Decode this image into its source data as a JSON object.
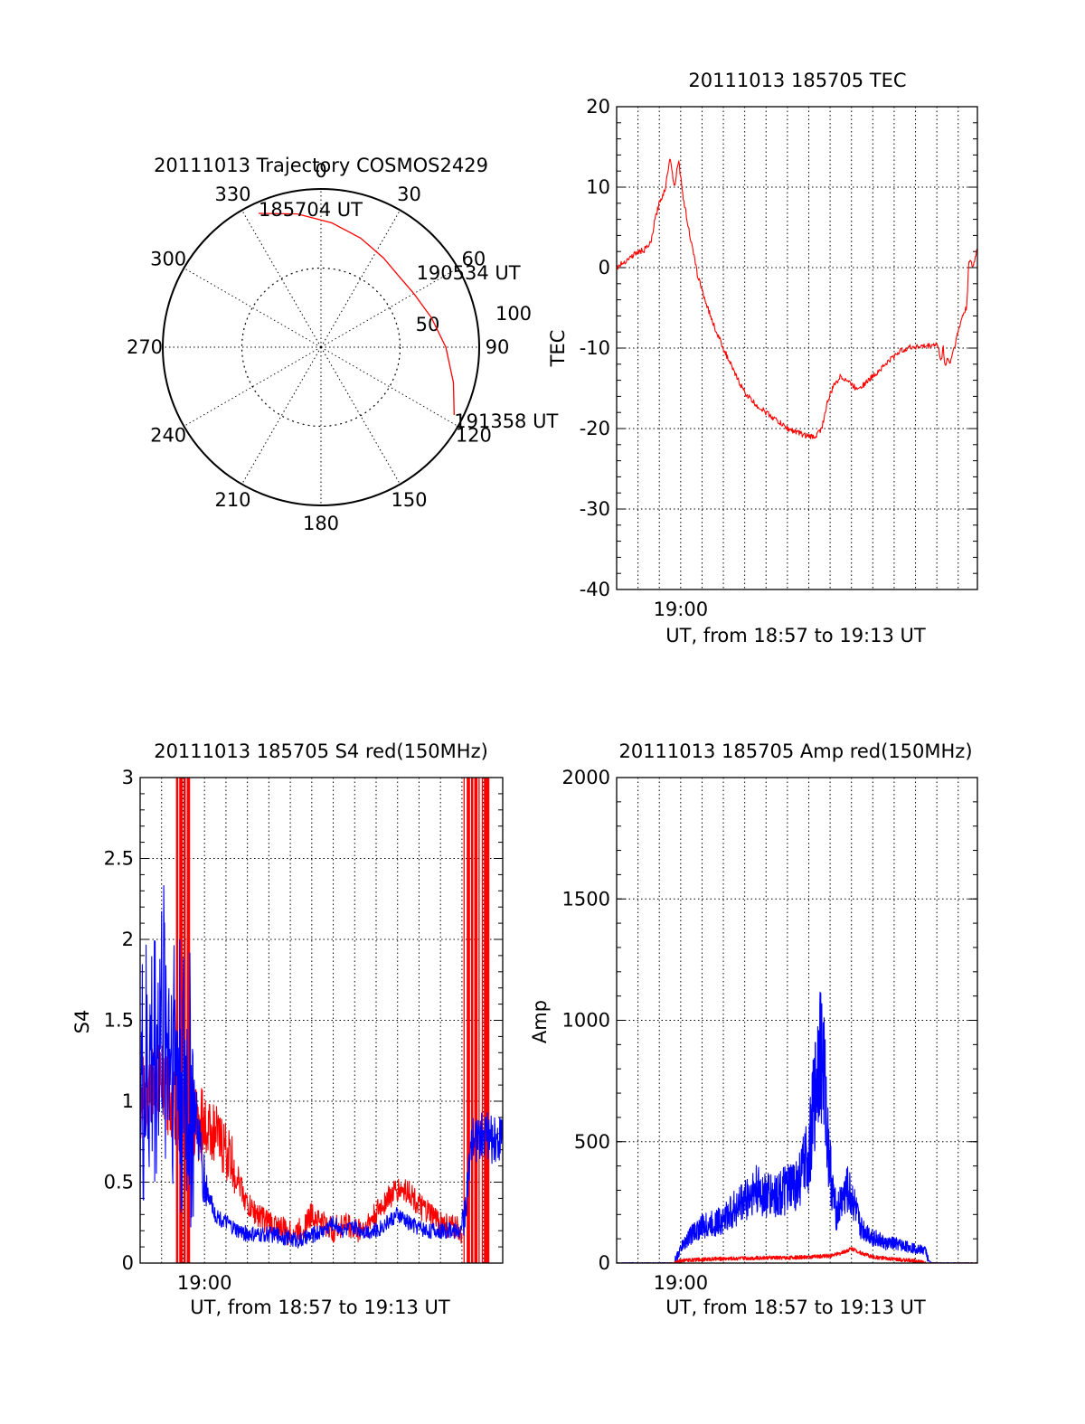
{
  "chart_data": [
    {
      "type": "polar",
      "title": "20111013 Trajectory COSMOS2429",
      "angle_labels": [
        "0",
        "30",
        "60",
        "90",
        "120",
        "150",
        "180",
        "210",
        "240",
        "270",
        "300",
        "330"
      ],
      "radial_labels": [
        "50",
        "100"
      ],
      "series": [
        {
          "color": "#ff0000",
          "points": [
            {
              "az": 335,
              "el": 6
            },
            {
              "az": 350,
              "el": 13
            },
            {
              "az": 5,
              "el": 19
            },
            {
              "az": 20,
              "el": 24
            },
            {
              "az": 35,
              "el": 28
            },
            {
              "az": 47,
              "el": 30
            },
            {
              "az": 60,
              "el": 29
            },
            {
              "az": 75,
              "el": 25
            },
            {
              "az": 90,
              "el": 19
            },
            {
              "az": 105,
              "el": 12
            },
            {
              "az": 117,
              "el": 5
            }
          ]
        }
      ],
      "annotations": [
        {
          "text": "185704 UT",
          "az": 335,
          "el": 6
        },
        {
          "text": "190534 UT",
          "az": 55,
          "el": 30
        },
        {
          "text": "191358 UT",
          "az": 117,
          "el": 5
        }
      ]
    },
    {
      "type": "line",
      "title": "20111013 185705 TEC",
      "ylabel": "TEC",
      "xlabel": "UT, from 18:57 to 19:13 UT",
      "x_tick_label": "19:00",
      "x_tick_value": 3,
      "xlim": [
        0,
        16.9
      ],
      "ylim": [
        -40,
        20
      ],
      "yticks": [
        "20",
        "10",
        "0",
        "-10",
        "-20",
        "-30",
        "-40"
      ],
      "series": [
        {
          "color": "#ff0000",
          "x": [
            0,
            0.5,
            0.9,
            1.3,
            1.6,
            1.8,
            2.0,
            2.3,
            2.5,
            2.7,
            2.9,
            3.1,
            3.3,
            3.5,
            3.8,
            4.2,
            4.6,
            5.0,
            5.5,
            6.0,
            6.5,
            7.0,
            7.5,
            8.0,
            8.5,
            9.0,
            9.3,
            9.6,
            9.9,
            10.2,
            10.5,
            10.8,
            11.2,
            11.6,
            12.0,
            12.4,
            12.8,
            13.2,
            13.6,
            14.0,
            14.5,
            15.0,
            15.2,
            15.3,
            15.4,
            15.5,
            15.6,
            15.8,
            16.0,
            16.2,
            16.4,
            16.5,
            16.7,
            16.9
          ],
          "y": [
            0,
            1.0,
            1.8,
            2.2,
            3.0,
            6.0,
            8.0,
            10.0,
            14.0,
            10.0,
            13.5,
            9.0,
            6.0,
            3.0,
            -1.0,
            -4.5,
            -7.5,
            -10.0,
            -13.0,
            -15.5,
            -17.0,
            -18.0,
            -19.0,
            -20.0,
            -20.5,
            -21.0,
            -21.0,
            -20.0,
            -16.5,
            -14.5,
            -13.5,
            -14.0,
            -15.0,
            -14.5,
            -13.5,
            -12.5,
            -11.5,
            -10.5,
            -10.0,
            -9.8,
            -9.8,
            -9.5,
            -11.5,
            -10.0,
            -12.5,
            -11.0,
            -12.0,
            -10.0,
            -8.0,
            -6.0,
            -5.0,
            1.0,
            0,
            2.5
          ]
        }
      ]
    },
    {
      "type": "line",
      "title": "20111013 185705 S4 red(150MHz)",
      "ylabel": "S4",
      "xlabel": "UT, from 18:57 to 19:13 UT",
      "x_tick_label": "19:00",
      "x_tick_value": 3,
      "xlim": [
        0,
        16.9
      ],
      "ylim": [
        0,
        3
      ],
      "yticks": [
        "3",
        "2.5",
        "2",
        "1.5",
        "1",
        "0.5",
        "0"
      ],
      "series": [
        {
          "name": "red",
          "color": "#ff0000",
          "x": [
            0,
            0.5,
            1.0,
            1.5,
            2.0,
            2.5,
            3.0,
            3.5,
            4.0,
            4.5,
            5.0,
            5.5,
            6.0,
            6.5,
            7.0,
            7.5,
            8.0,
            8.5,
            9.0,
            9.5,
            10.0,
            10.5,
            11.0,
            11.5,
            12.0,
            12.5,
            13.0,
            13.5,
            14.0,
            14.5,
            15.0
          ],
          "y": [
            1.0,
            1.1,
            1.1,
            1.0,
            0.9,
            0.9,
            0.85,
            0.8,
            0.7,
            0.55,
            0.35,
            0.3,
            0.25,
            0.22,
            0.18,
            0.2,
            0.3,
            0.25,
            0.2,
            0.25,
            0.2,
            0.22,
            0.3,
            0.4,
            0.45,
            0.45,
            0.35,
            0.3,
            0.25,
            0.22,
            0.2
          ]
        },
        {
          "name": "blue",
          "color": "#0000ff",
          "x": [
            0,
            0.5,
            1.0,
            1.5,
            2.0,
            2.5,
            3.0,
            3.5,
            4.0,
            4.5,
            5.0,
            5.5,
            6.0,
            6.5,
            7.0,
            7.5,
            8.0,
            8.5,
            9.0,
            9.5,
            10.0,
            10.5,
            11.0,
            11.5,
            12.0,
            12.5,
            13.0,
            13.5,
            14.0,
            14.5,
            15.0,
            15.5,
            16.0,
            16.5,
            16.9
          ],
          "y": [
            1.0,
            1.2,
            1.5,
            1.4,
            1.1,
            1.0,
            0.5,
            0.3,
            0.25,
            0.2,
            0.18,
            0.17,
            0.18,
            0.17,
            0.15,
            0.14,
            0.17,
            0.2,
            0.25,
            0.2,
            0.22,
            0.2,
            0.2,
            0.25,
            0.3,
            0.25,
            0.22,
            0.2,
            0.2,
            0.2,
            0.2,
            0.75,
            0.8,
            0.75,
            0.8
          ]
        }
      ],
      "bursts": [
        {
          "x": [
            1.6,
            2.3
          ],
          "color": "#ff0000"
        },
        {
          "x": [
            15.1,
            16.3
          ],
          "color": "#ff0000"
        }
      ]
    },
    {
      "type": "line",
      "title": "20111013 185705 Amp red(150MHz)",
      "ylabel": "Amp",
      "xlabel": "UT, from 18:57 to 19:13 UT",
      "x_tick_label": "19:00",
      "x_tick_value": 3,
      "xlim": [
        0,
        16.9
      ],
      "ylim": [
        0,
        2000
      ],
      "yticks": [
        "2000",
        "1500",
        "1000",
        "500",
        "0"
      ],
      "series": [
        {
          "name": "blue",
          "color": "#0000ff",
          "x": [
            0,
            2.7,
            3.0,
            3.5,
            4.0,
            4.5,
            5.0,
            5.5,
            6.0,
            6.5,
            7.0,
            7.5,
            8.0,
            8.5,
            9.0,
            9.3,
            9.5,
            9.7,
            9.9,
            10.1,
            10.3,
            10.5,
            10.8,
            11.1,
            11.4,
            11.8,
            12.2,
            12.6,
            13.0,
            13.5,
            14.0,
            14.5,
            14.6,
            14.8,
            16.9
          ],
          "y": [
            0,
            0,
            60,
            120,
            150,
            160,
            180,
            220,
            260,
            300,
            280,
            280,
            300,
            330,
            450,
            700,
            900,
            800,
            500,
            300,
            200,
            250,
            300,
            250,
            150,
            120,
            100,
            80,
            80,
            70,
            60,
            50,
            10,
            0,
            0
          ]
        },
        {
          "name": "red",
          "color": "#ff0000",
          "x": [
            0,
            2.7,
            3.0,
            4.0,
            5.0,
            6.0,
            7.0,
            8.0,
            9.0,
            10.0,
            10.5,
            11.0,
            11.5,
            12.0,
            13.0,
            14.0,
            14.5,
            16.9
          ],
          "y": [
            0,
            0,
            10,
            15,
            18,
            20,
            22,
            22,
            25,
            30,
            40,
            60,
            40,
            25,
            15,
            10,
            0,
            0
          ]
        }
      ]
    }
  ]
}
